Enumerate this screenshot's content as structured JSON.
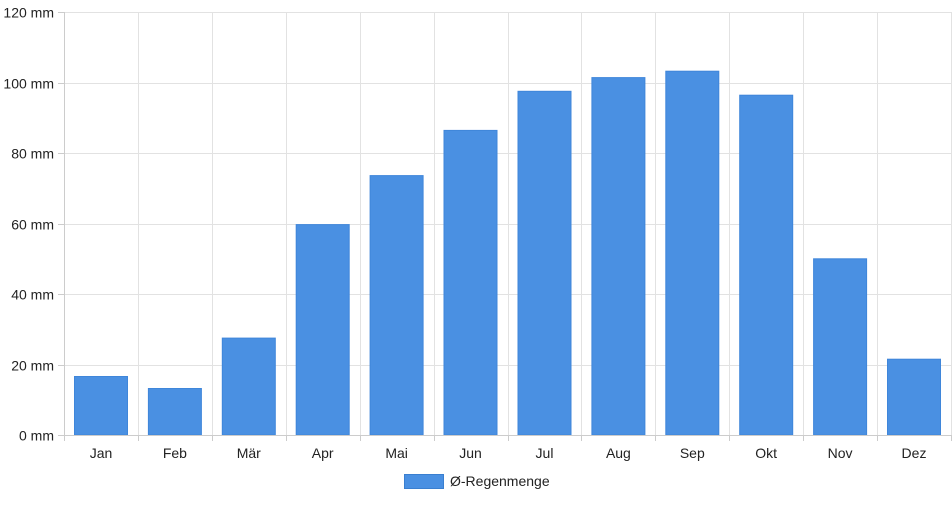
{
  "chart_data": {
    "type": "bar",
    "categories": [
      "Jan",
      "Feb",
      "Mär",
      "Apr",
      "Mai",
      "Jun",
      "Jul",
      "Aug",
      "Sep",
      "Okt",
      "Nov",
      "Dez"
    ],
    "series": [
      {
        "name": "Ø-Regenmenge",
        "values": [
          16.6,
          13.2,
          27.5,
          59.7,
          73.6,
          86.4,
          97.5,
          101.4,
          103.2,
          96.4,
          50,
          21.5
        ],
        "color": "#4a90e2"
      }
    ],
    "y_ticks": [
      "0 mm",
      "20 mm",
      "40 mm",
      "60 mm",
      "80 mm",
      "100 mm",
      "120 mm"
    ],
    "ylim": [
      0,
      120
    ],
    "ystep": 20,
    "grid": true,
    "legend_position": "bottom"
  }
}
